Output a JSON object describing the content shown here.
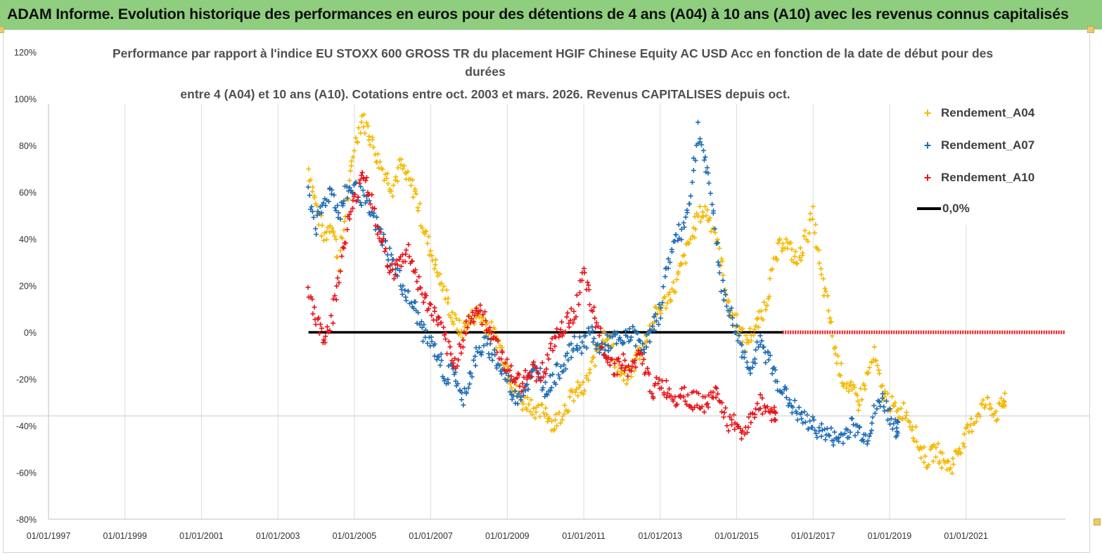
{
  "header": {
    "title": "ADAM Informe. Evolution historique des performances en euros pour des détentions de 4 ans (A04) à 10 ans (A10) avec les revenus connus capitalisés"
  },
  "chart_data": {
    "type": "scatter",
    "title_lines": [
      "Performance par rapport à l'indice EU STOXX 600 GROSS TR  du placement HGIF Chinese Equity AC USD Acc en fonction de la date de début pour des",
      "durées",
      "entre 4 (A04) et 10 ans (A10). Cotations entre oct. 2003 et mars. 2026. Revenus CAPITALISES depuis oct."
    ],
    "x_ticks": [
      "01/01/1997",
      "01/01/1999",
      "01/01/2001",
      "01/01/2003",
      "01/01/2005",
      "01/01/2007",
      "01/01/2009",
      "01/01/2011",
      "01/01/2013",
      "01/01/2015",
      "01/01/2017",
      "01/01/2019",
      "01/01/2021"
    ],
    "y_ticks": [
      "120%",
      "100%",
      "80%",
      "60%",
      "40%",
      "20%",
      "0%",
      "-20%",
      "-40%",
      "-60%",
      "-80%"
    ],
    "xlim": [
      1997,
      2023.6
    ],
    "ylim": [
      -80,
      120
    ],
    "y_unit": "%",
    "grid": "vertical",
    "legend_position": "right",
    "series": [
      {
        "name": "Rendement_A04",
        "color": "#f5b800",
        "marker": "+",
        "points": [
          [
            2003.8,
            70
          ],
          [
            2004.0,
            55
          ],
          [
            2004.2,
            40
          ],
          [
            2004.4,
            48
          ],
          [
            2004.6,
            30
          ],
          [
            2004.8,
            55
          ],
          [
            2005.0,
            80
          ],
          [
            2005.2,
            92
          ],
          [
            2005.4,
            85
          ],
          [
            2005.6,
            75
          ],
          [
            2005.8,
            68
          ],
          [
            2006.0,
            62
          ],
          [
            2006.2,
            72
          ],
          [
            2006.4,
            65
          ],
          [
            2006.6,
            60
          ],
          [
            2006.8,
            45
          ],
          [
            2007.0,
            35
          ],
          [
            2007.2,
            25
          ],
          [
            2007.4,
            15
          ],
          [
            2007.6,
            5
          ],
          [
            2007.8,
            0
          ],
          [
            2008.0,
            5
          ],
          [
            2008.2,
            8
          ],
          [
            2008.4,
            5
          ],
          [
            2008.6,
            0
          ],
          [
            2008.8,
            -5
          ],
          [
            2009.0,
            -15
          ],
          [
            2009.2,
            -25
          ],
          [
            2009.4,
            -30
          ],
          [
            2009.6,
            -30
          ],
          [
            2009.8,
            -35
          ],
          [
            2010.0,
            -33
          ],
          [
            2010.2,
            -40
          ],
          [
            2010.4,
            -35
          ],
          [
            2010.6,
            -30
          ],
          [
            2010.8,
            -25
          ],
          [
            2011.0,
            -25
          ],
          [
            2011.2,
            -15
          ],
          [
            2011.4,
            -5
          ],
          [
            2011.6,
            0
          ],
          [
            2011.8,
            -10
          ],
          [
            2012.0,
            -20
          ],
          [
            2012.2,
            -18
          ],
          [
            2012.4,
            -10
          ],
          [
            2012.6,
            -5
          ],
          [
            2012.8,
            5
          ],
          [
            2013.0,
            10
          ],
          [
            2013.2,
            15
          ],
          [
            2013.4,
            20
          ],
          [
            2013.6,
            30
          ],
          [
            2013.8,
            40
          ],
          [
            2014.0,
            50
          ],
          [
            2014.2,
            52
          ],
          [
            2014.4,
            45
          ],
          [
            2014.6,
            30
          ],
          [
            2014.8,
            10
          ],
          [
            2015.0,
            5
          ],
          [
            2015.2,
            -5
          ],
          [
            2015.4,
            0
          ],
          [
            2015.6,
            5
          ],
          [
            2015.8,
            15
          ],
          [
            2016.0,
            30
          ],
          [
            2016.2,
            40
          ],
          [
            2016.4,
            35
          ],
          [
            2016.6,
            30
          ],
          [
            2016.8,
            40
          ],
          [
            2017.0,
            50
          ],
          [
            2017.2,
            25
          ],
          [
            2017.4,
            10
          ],
          [
            2017.6,
            -10
          ],
          [
            2017.8,
            -20
          ],
          [
            2018.0,
            -25
          ],
          [
            2018.2,
            -30
          ],
          [
            2018.4,
            -20
          ],
          [
            2018.6,
            -10
          ],
          [
            2018.8,
            -25
          ],
          [
            2019.0,
            -30
          ],
          [
            2019.2,
            -35
          ],
          [
            2019.4,
            -33
          ],
          [
            2019.6,
            -40
          ],
          [
            2019.8,
            -50
          ],
          [
            2020.0,
            -55
          ],
          [
            2020.2,
            -50
          ],
          [
            2020.4,
            -55
          ],
          [
            2020.6,
            -58
          ],
          [
            2020.8,
            -50
          ],
          [
            2021.0,
            -45
          ],
          [
            2021.2,
            -38
          ],
          [
            2021.4,
            -32
          ],
          [
            2021.6,
            -30
          ],
          [
            2021.8,
            -35
          ],
          [
            2022.0,
            -30
          ]
        ]
      },
      {
        "name": "Rendement_A07",
        "color": "#1f6cb5",
        "marker": "+",
        "points": [
          [
            2003.8,
            60
          ],
          [
            2004.0,
            45
          ],
          [
            2004.2,
            55
          ],
          [
            2004.4,
            62
          ],
          [
            2004.6,
            50
          ],
          [
            2004.8,
            60
          ],
          [
            2005.0,
            62
          ],
          [
            2005.2,
            58
          ],
          [
            2005.4,
            52
          ],
          [
            2005.6,
            45
          ],
          [
            2005.8,
            38
          ],
          [
            2006.0,
            30
          ],
          [
            2006.2,
            22
          ],
          [
            2006.4,
            15
          ],
          [
            2006.6,
            10
          ],
          [
            2006.8,
            0
          ],
          [
            2007.0,
            -5
          ],
          [
            2007.2,
            -10
          ],
          [
            2007.4,
            -20
          ],
          [
            2007.6,
            -15
          ],
          [
            2007.8,
            -30
          ],
          [
            2008.0,
            -20
          ],
          [
            2008.2,
            -10
          ],
          [
            2008.4,
            -5
          ],
          [
            2008.6,
            -8
          ],
          [
            2008.8,
            -15
          ],
          [
            2009.0,
            -20
          ],
          [
            2009.2,
            -28
          ],
          [
            2009.4,
            -25
          ],
          [
            2009.6,
            -20
          ],
          [
            2009.8,
            -15
          ],
          [
            2010.0,
            -25
          ],
          [
            2010.2,
            -20
          ],
          [
            2010.4,
            -15
          ],
          [
            2010.6,
            -10
          ],
          [
            2010.8,
            -5
          ],
          [
            2011.0,
            -5
          ],
          [
            2011.2,
            0
          ],
          [
            2011.4,
            -8
          ],
          [
            2011.6,
            -5
          ],
          [
            2011.8,
            -3
          ],
          [
            2012.0,
            -5
          ],
          [
            2012.2,
            0
          ],
          [
            2012.4,
            -3
          ],
          [
            2012.6,
            -5
          ],
          [
            2012.8,
            0
          ],
          [
            2013.0,
            10
          ],
          [
            2013.2,
            30
          ],
          [
            2013.4,
            40
          ],
          [
            2013.6,
            45
          ],
          [
            2013.8,
            60
          ],
          [
            2014.0,
            88
          ],
          [
            2014.2,
            70
          ],
          [
            2014.4,
            50
          ],
          [
            2014.6,
            20
          ],
          [
            2014.8,
            10
          ],
          [
            2015.0,
            0
          ],
          [
            2015.2,
            -10
          ],
          [
            2015.4,
            -15
          ],
          [
            2015.6,
            -5
          ],
          [
            2015.8,
            -10
          ],
          [
            2016.0,
            -18
          ],
          [
            2016.2,
            -25
          ],
          [
            2016.4,
            -30
          ],
          [
            2016.6,
            -35
          ],
          [
            2016.8,
            -38
          ],
          [
            2017.0,
            -40
          ],
          [
            2017.2,
            -42
          ],
          [
            2017.4,
            -44
          ],
          [
            2017.6,
            -46
          ],
          [
            2017.8,
            -44
          ],
          [
            2018.0,
            -40
          ],
          [
            2018.2,
            -42
          ],
          [
            2018.4,
            -45
          ],
          [
            2018.6,
            -35
          ],
          [
            2018.8,
            -28
          ],
          [
            2019.0,
            -35
          ],
          [
            2019.2,
            -42
          ]
        ]
      },
      {
        "name": "Rendement_A10",
        "color": "#e8141a",
        "marker": "+",
        "points": [
          [
            2003.8,
            20
          ],
          [
            2004.0,
            5
          ],
          [
            2004.2,
            -2
          ],
          [
            2004.4,
            5
          ],
          [
            2004.6,
            25
          ],
          [
            2004.8,
            45
          ],
          [
            2005.0,
            55
          ],
          [
            2005.2,
            70
          ],
          [
            2005.4,
            60
          ],
          [
            2005.6,
            45
          ],
          [
            2005.8,
            35
          ],
          [
            2006.0,
            25
          ],
          [
            2006.2,
            30
          ],
          [
            2006.4,
            35
          ],
          [
            2006.6,
            25
          ],
          [
            2006.8,
            15
          ],
          [
            2007.0,
            10
          ],
          [
            2007.2,
            5
          ],
          [
            2007.4,
            -5
          ],
          [
            2007.6,
            -15
          ],
          [
            2007.8,
            -5
          ],
          [
            2008.0,
            5
          ],
          [
            2008.2,
            10
          ],
          [
            2008.4,
            5
          ],
          [
            2008.6,
            0
          ],
          [
            2008.8,
            -8
          ],
          [
            2009.0,
            -15
          ],
          [
            2009.2,
            -20
          ],
          [
            2009.4,
            -22
          ],
          [
            2009.6,
            -15
          ],
          [
            2009.8,
            -18
          ],
          [
            2010.0,
            -15
          ],
          [
            2010.2,
            -5
          ],
          [
            2010.4,
            0
          ],
          [
            2010.6,
            5
          ],
          [
            2010.8,
            10
          ],
          [
            2011.0,
            25
          ],
          [
            2011.2,
            10
          ],
          [
            2011.4,
            0
          ],
          [
            2011.6,
            -10
          ],
          [
            2011.8,
            -15
          ],
          [
            2012.0,
            -12
          ],
          [
            2012.2,
            -18
          ],
          [
            2012.4,
            -10
          ],
          [
            2012.6,
            -15
          ],
          [
            2012.8,
            -25
          ],
          [
            2013.0,
            -22
          ],
          [
            2013.2,
            -25
          ],
          [
            2013.4,
            -28
          ],
          [
            2013.6,
            -25
          ],
          [
            2013.8,
            -30
          ],
          [
            2014.0,
            -28
          ],
          [
            2014.2,
            -32
          ],
          [
            2014.4,
            -25
          ],
          [
            2014.6,
            -30
          ],
          [
            2014.8,
            -40
          ],
          [
            2015.0,
            -38
          ],
          [
            2015.2,
            -45
          ],
          [
            2015.4,
            -35
          ],
          [
            2015.6,
            -30
          ],
          [
            2015.8,
            -33
          ],
          [
            2016.0,
            -35
          ]
        ]
      },
      {
        "name": "0,0%",
        "color": "#000000",
        "marker": "line",
        "points": [
          [
            2003.8,
            0
          ],
          [
            2016.2,
            0
          ]
        ]
      }
    ],
    "zero_dots": {
      "color": "#e8141a",
      "from": 2016.2,
      "to": 2023.6,
      "value": 0
    }
  }
}
